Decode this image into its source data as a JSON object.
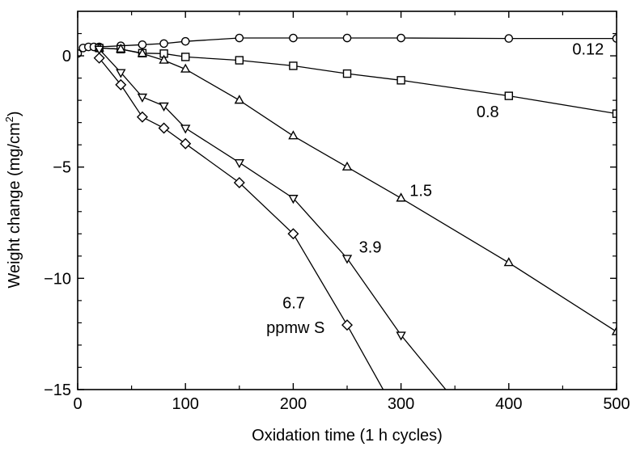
{
  "chart_data": {
    "type": "line",
    "xlabel": "Oxidation time (1 h cycles)",
    "ylabel": "Weight change (mg/cm²)",
    "ylabel_parts": [
      "Weight change (mg/cm",
      "2",
      ")"
    ],
    "xlim": [
      0,
      500
    ],
    "ylim": [
      -15,
      2
    ],
    "x_ticks": [
      0,
      100,
      200,
      300,
      400,
      500
    ],
    "x_tick_labels": [
      "0",
      "100",
      "200",
      "300",
      "400",
      "500"
    ],
    "y_ticks": [
      0,
      -5,
      -10,
      -15
    ],
    "y_tick_labels": [
      "0",
      "−5",
      "−10",
      "−15"
    ],
    "grid": false,
    "series": [
      {
        "name": "0.12",
        "marker": "circle",
        "points": [
          [
            0,
            0.1
          ],
          [
            5,
            0.35
          ],
          [
            10,
            0.4
          ],
          [
            15,
            0.4
          ],
          [
            20,
            0.4
          ],
          [
            40,
            0.45
          ],
          [
            60,
            0.5
          ],
          [
            80,
            0.55
          ],
          [
            100,
            0.65
          ],
          [
            150,
            0.8
          ],
          [
            200,
            0.8
          ],
          [
            250,
            0.8
          ],
          [
            300,
            0.8
          ],
          [
            400,
            0.78
          ],
          [
            500,
            0.78
          ]
        ]
      },
      {
        "name": "0.8",
        "marker": "square",
        "points": [
          [
            20,
            0.35
          ],
          [
            40,
            0.3
          ],
          [
            60,
            0.12
          ],
          [
            80,
            0.1
          ],
          [
            100,
            -0.05
          ],
          [
            150,
            -0.2
          ],
          [
            200,
            -0.45
          ],
          [
            250,
            -0.8
          ],
          [
            300,
            -1.1
          ],
          [
            400,
            -1.8
          ],
          [
            500,
            -2.6
          ]
        ]
      },
      {
        "name": "1.5",
        "marker": "triangle-up",
        "points": [
          [
            20,
            0.35
          ],
          [
            40,
            0.3
          ],
          [
            60,
            0.1
          ],
          [
            80,
            -0.2
          ],
          [
            100,
            -0.6
          ],
          [
            150,
            -2.0
          ],
          [
            200,
            -3.6
          ],
          [
            250,
            -5.0
          ],
          [
            300,
            -6.4
          ],
          [
            400,
            -9.3
          ],
          [
            500,
            -12.4
          ]
        ]
      },
      {
        "name": "3.9",
        "marker": "triangle-down",
        "points": [
          [
            20,
            0.3
          ],
          [
            40,
            -0.75
          ],
          [
            60,
            -1.85
          ],
          [
            80,
            -2.25
          ],
          [
            100,
            -3.25
          ],
          [
            150,
            -4.8
          ],
          [
            200,
            -6.4
          ],
          [
            250,
            -9.1
          ],
          [
            300,
            -12.55
          ],
          [
            350,
            -15.5
          ]
        ]
      },
      {
        "name": "6.7 ppmw S",
        "marker": "diamond",
        "points": [
          [
            20,
            -0.1
          ],
          [
            40,
            -1.3
          ],
          [
            60,
            -2.75
          ],
          [
            80,
            -3.25
          ],
          [
            100,
            -3.95
          ],
          [
            150,
            -5.7
          ],
          [
            200,
            -8.0
          ],
          [
            250,
            -12.1
          ],
          [
            295,
            -16.0
          ]
        ]
      }
    ],
    "annotations": [
      {
        "text": "0.12",
        "x": 459,
        "y": 0.05
      },
      {
        "text": "0.8",
        "x": 370,
        "y": -2.75
      },
      {
        "text": "1.5",
        "x": 308,
        "y": -6.3
      },
      {
        "text": "3.9",
        "x": 261,
        "y": -8.85
      },
      {
        "text": "6.7",
        "x": 190,
        "y": -11.35
      },
      {
        "text": "ppmw S",
        "x": 175,
        "y": -12.45
      }
    ]
  }
}
